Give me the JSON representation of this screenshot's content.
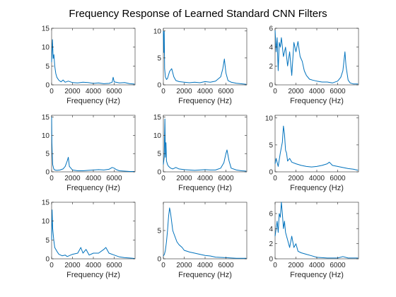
{
  "figure": {
    "title": "Frequency Response of Learned Standard CNN Filters",
    "colors": {
      "series": "#0072bd",
      "axes": "#262626",
      "background": "#ffffff"
    }
  },
  "chart_data": [
    {
      "type": "line",
      "xlabel": "Frequency (Hz)",
      "ylabel": "",
      "xlim": [
        0,
        8000
      ],
      "ylim": [
        0,
        15
      ],
      "xticks": [
        0,
        2000,
        4000,
        6000
      ],
      "yticks": [
        0,
        5,
        10,
        15
      ],
      "grid": false,
      "series": [
        {
          "x": [
            0,
            80,
            150,
            220,
            300,
            400,
            500,
            700,
            900,
            1100,
            1300,
            1600,
            2000,
            2500,
            3000,
            3500,
            4000,
            4500,
            5000,
            5500,
            5800,
            5900,
            6000,
            6500,
            7000,
            7500,
            7950
          ],
          "values": [
            6,
            12,
            7,
            8,
            5,
            3,
            2,
            1.2,
            0.8,
            1.3,
            0.7,
            1.0,
            0.6,
            0.5,
            0.7,
            0.6,
            0.4,
            0.5,
            0.3,
            0.4,
            0.7,
            2.0,
            0.8,
            0.5,
            0.6,
            0.3,
            0.2
          ]
        }
      ]
    },
    {
      "type": "line",
      "xlabel": "Frequency (Hz)",
      "ylabel": "",
      "xlim": [
        0,
        8000
      ],
      "ylim": [
        0,
        10.5
      ],
      "xticks": [
        0,
        2000,
        4000,
        6000
      ],
      "yticks": [
        0,
        5,
        10
      ],
      "grid": false,
      "series": [
        {
          "x": [
            0,
            40,
            80,
            120,
            200,
            300,
            400,
            600,
            800,
            1000,
            1200,
            1500,
            2000,
            2500,
            3000,
            3500,
            4000,
            4500,
            5000,
            5500,
            5700,
            5850,
            6000,
            6200,
            6500,
            7000,
            7500,
            7950
          ],
          "values": [
            10,
            6,
            10,
            3,
            1.5,
            1.0,
            1.2,
            2.5,
            3.0,
            1.5,
            0.8,
            0.6,
            0.5,
            0.4,
            0.5,
            0.4,
            0.6,
            0.5,
            0.7,
            1.5,
            3.0,
            4.8,
            2.2,
            0.8,
            0.5,
            0.3,
            0.2,
            0.1
          ]
        }
      ]
    },
    {
      "type": "line",
      "xlabel": "Frequency (Hz)",
      "ylabel": "",
      "xlim": [
        0,
        8000
      ],
      "ylim": [
        0,
        6
      ],
      "xticks": [
        0,
        2000,
        4000,
        6000
      ],
      "yticks": [
        0,
        2,
        4,
        6
      ],
      "grid": false,
      "series": [
        {
          "x": [
            0,
            100,
            200,
            300,
            400,
            500,
            600,
            800,
            1000,
            1200,
            1400,
            1600,
            1800,
            2000,
            2200,
            2400,
            2600,
            2800,
            3000,
            3300,
            3600,
            4000,
            4500,
            5000,
            5500,
            6000,
            6300,
            6500,
            6700,
            6800,
            7000,
            7200,
            7500,
            7950
          ],
          "values": [
            5.8,
            3.5,
            5.0,
            1.5,
            4.5,
            4.0,
            5.0,
            3.0,
            4.0,
            2.0,
            3.5,
            1.0,
            4.5,
            3.5,
            4.6,
            3.0,
            2.5,
            1.5,
            1.0,
            0.6,
            0.5,
            0.4,
            0.3,
            0.3,
            0.2,
            0.4,
            0.8,
            1.5,
            3.5,
            2.0,
            0.5,
            0.2,
            0.1,
            0.1
          ]
        }
      ]
    },
    {
      "type": "line",
      "xlabel": "Frequency (Hz)",
      "ylabel": "",
      "xlim": [
        0,
        8000
      ],
      "ylim": [
        0,
        15.5
      ],
      "xticks": [
        0,
        2000,
        4000,
        6000
      ],
      "yticks": [
        0,
        5,
        10,
        15
      ],
      "grid": false,
      "series": [
        {
          "x": [
            0,
            30,
            60,
            100,
            200,
            300,
            500,
            800,
            1100,
            1300,
            1500,
            1600,
            1700,
            2000,
            2500,
            3000,
            3500,
            4000,
            4500,
            5000,
            5500,
            5800,
            6000,
            6200,
            6500,
            7000,
            7500,
            7950
          ],
          "values": [
            15.2,
            8,
            5,
            2,
            0.8,
            0.5,
            0.4,
            0.5,
            0.8,
            1.5,
            3.0,
            4.0,
            1.5,
            0.5,
            0.3,
            0.3,
            0.4,
            0.5,
            0.6,
            0.5,
            0.7,
            1.2,
            1.0,
            0.6,
            0.3,
            0.2,
            0.1,
            0.1
          ]
        }
      ]
    },
    {
      "type": "line",
      "xlabel": "Frequency (Hz)",
      "ylabel": "",
      "xlim": [
        0,
        8000
      ],
      "ylim": [
        0,
        15.5
      ],
      "xticks": [
        0,
        2000,
        4000,
        6000
      ],
      "yticks": [
        0,
        5,
        10,
        15
      ],
      "grid": false,
      "series": [
        {
          "x": [
            0,
            80,
            150,
            200,
            250,
            300,
            400,
            500,
            700,
            900,
            1200,
            1500,
            2000,
            2500,
            3000,
            3500,
            4000,
            4500,
            5000,
            5500,
            5800,
            6000,
            6100,
            6300,
            6500,
            7000,
            7500,
            7950
          ],
          "values": [
            2,
            4,
            14.5,
            4,
            8,
            3,
            2,
            1.5,
            1.0,
            0.8,
            1.2,
            0.8,
            0.6,
            0.5,
            0.4,
            0.5,
            0.6,
            0.5,
            0.5,
            1.0,
            2.5,
            5.0,
            6.0,
            3.0,
            1.0,
            0.5,
            0.3,
            0.2
          ]
        }
      ]
    },
    {
      "type": "line",
      "xlabel": "Frequency (Hz)",
      "ylabel": "",
      "xlim": [
        0,
        8000
      ],
      "ylim": [
        0,
        10.5
      ],
      "xticks": [
        0,
        2000,
        4000,
        6000
      ],
      "yticks": [
        0,
        5,
        10
      ],
      "grid": false,
      "series": [
        {
          "x": [
            0,
            100,
            300,
            500,
            700,
            800,
            900,
            1000,
            1100,
            1200,
            1400,
            1600,
            2000,
            2500,
            3000,
            3500,
            4000,
            4500,
            5000,
            5200,
            5500,
            6000,
            6500,
            7000,
            7500,
            7950
          ],
          "values": [
            1.5,
            2.5,
            1.0,
            3.5,
            5.5,
            8.5,
            7.0,
            4.0,
            3.5,
            2.0,
            2.5,
            1.8,
            1.5,
            1.2,
            1.0,
            0.9,
            1.0,
            1.2,
            1.5,
            1.8,
            1.2,
            1.0,
            0.8,
            0.6,
            0.5,
            0.3
          ]
        }
      ]
    },
    {
      "type": "line",
      "xlabel": "Frequency (Hz)",
      "ylabel": "",
      "xlim": [
        0,
        8000
      ],
      "ylim": [
        0,
        15
      ],
      "xticks": [
        0,
        2000,
        4000,
        6000
      ],
      "yticks": [
        0,
        5,
        10,
        15
      ],
      "grid": false,
      "series": [
        {
          "x": [
            0,
            50,
            100,
            200,
            300,
            500,
            700,
            1000,
            1300,
            1500,
            2000,
            2500,
            2800,
            3000,
            3300,
            3600,
            4000,
            4500,
            5000,
            5200,
            5500,
            6000,
            6500,
            7000,
            7500,
            7950
          ],
          "values": [
            5,
            13,
            8,
            5,
            3,
            2,
            1.2,
            0.8,
            1.0,
            0.6,
            1.2,
            1.5,
            3.0,
            1.5,
            2.5,
            1.0,
            1.5,
            1.5,
            2.5,
            3.0,
            1.5,
            1.0,
            0.5,
            0.3,
            0.2,
            0.1
          ]
        }
      ]
    },
    {
      "type": "line",
      "xlabel": "Frequency (Hz)",
      "ylabel": "",
      "xlim": [
        0,
        8000
      ],
      "ylim": [
        0,
        10
      ],
      "xticks": [
        0,
        2000,
        4000,
        6000
      ],
      "yticks": [
        0,
        5
      ],
      "grid": false,
      "series": [
        {
          "x": [
            0,
            100,
            200,
            300,
            400,
            500,
            600,
            700,
            800,
            900,
            1100,
            1300,
            1500,
            1800,
            2000,
            2500,
            3000,
            3500,
            4000,
            4500,
            5000,
            6000,
            7000,
            7950
          ],
          "values": [
            0.5,
            0.8,
            1.5,
            3.0,
            5.0,
            7.5,
            9.0,
            8.0,
            6.5,
            5.0,
            4.0,
            3.0,
            2.5,
            2.0,
            1.5,
            1.2,
            1.0,
            0.8,
            0.6,
            0.5,
            0.3,
            0.2,
            0.1,
            0.1
          ]
        }
      ]
    },
    {
      "type": "line",
      "xlabel": "Frequency (Hz)",
      "ylabel": "",
      "xlim": [
        0,
        8000
      ],
      "ylim": [
        0,
        7.5
      ],
      "xticks": [
        0,
        2000,
        4000,
        6000
      ],
      "yticks": [
        0,
        2,
        4,
        6
      ],
      "grid": false,
      "series": [
        {
          "x": [
            0,
            100,
            200,
            300,
            400,
            500,
            600,
            700,
            800,
            900,
            1000,
            1200,
            1400,
            1600,
            1800,
            2000,
            2200,
            2500,
            3000,
            3500,
            4000,
            5000,
            6000,
            6500,
            7000,
            7950
          ],
          "values": [
            3.0,
            4.0,
            5.0,
            3.5,
            6.0,
            5.5,
            7.5,
            6.0,
            4.0,
            5.0,
            3.5,
            2.5,
            1.5,
            3.0,
            1.5,
            2.0,
            1.0,
            0.8,
            0.6,
            0.4,
            0.2,
            0.1,
            0.1,
            0.3,
            0.1,
            0.1
          ]
        }
      ]
    }
  ]
}
